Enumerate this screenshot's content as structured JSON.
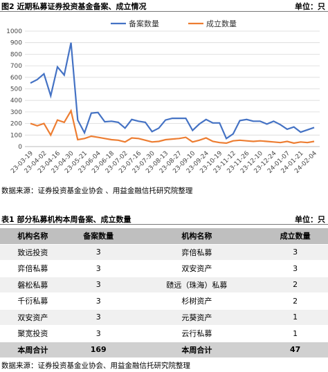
{
  "chart_data": {
    "type": "line",
    "title": "图2 近期私募证券投资基金备案、成立情况",
    "unit": "单位：只",
    "categories": [
      "23-03-19",
      null,
      "23-04-02",
      null,
      "23-04-16",
      null,
      "23-04-30",
      null,
      "23-05-21",
      null,
      "23-06-04",
      null,
      "23-06-18",
      null,
      "23-07-02",
      null,
      "23-07-16",
      null,
      "23-07-30",
      null,
      "23-08-13",
      null,
      "23-08-27",
      null,
      "23-09-10",
      null,
      "23-09-24",
      null,
      "23-10-19",
      null,
      "23-11-12",
      null,
      "23-11-26",
      null,
      "23-12-10",
      null,
      "23-12-24",
      null,
      "24-01-07",
      null,
      "24-01-21",
      null,
      "24-02-04"
    ],
    "series": [
      {
        "name": "备案数量",
        "color": "#4472c4",
        "values": [
          550,
          580,
          630,
          440,
          690,
          620,
          900,
          230,
          120,
          290,
          295,
          215,
          220,
          210,
          160,
          235,
          220,
          210,
          130,
          160,
          230,
          245,
          245,
          245,
          140,
          195,
          235,
          205,
          205,
          70,
          110,
          225,
          235,
          220,
          220,
          195,
          220,
          190,
          150,
          170,
          125,
          145,
          165
        ]
      },
      {
        "name": "成立数量",
        "color": "#ed7d31",
        "values": [
          200,
          180,
          200,
          100,
          230,
          210,
          310,
          60,
          70,
          90,
          80,
          70,
          60,
          55,
          40,
          75,
          70,
          55,
          40,
          45,
          60,
          65,
          70,
          80,
          40,
          55,
          75,
          45,
          35,
          30,
          50,
          55,
          50,
          45,
          50,
          45,
          40,
          35,
          45,
          30,
          40,
          35,
          45
        ]
      }
    ],
    "ylim": [
      0,
      1000
    ],
    "yticks": [
      0,
      100,
      200,
      300,
      400,
      500,
      600,
      700,
      800,
      900,
      1000
    ],
    "grid": true,
    "legend": "top",
    "source": "数据来源：证券投资基金业协会 、用益金融信托研究院整理"
  },
  "table": {
    "title": "表1 部分私募机构本周备案、成立数量",
    "unit": "单位：只",
    "columns": [
      "机构名称",
      "备案数量",
      "机构名称",
      "成立数量"
    ],
    "rows": [
      [
        "致远投资",
        3,
        "弈倍私募",
        3
      ],
      [
        "弈倍私募",
        3,
        "双安资产",
        3
      ],
      [
        "磐松私募",
        3,
        "赜远（珠海）私募",
        2
      ],
      [
        "千衍私募",
        3,
        "杉树资产",
        2
      ],
      [
        "双安资产",
        3,
        "元葵资产",
        1
      ],
      [
        "聚宽投资",
        3,
        "云行私募",
        1
      ]
    ],
    "total": [
      "本周合计",
      169,
      "本周合计",
      47
    ],
    "source": "数据来源：证券投资基金业协会、用益金融信托研究院整理"
  }
}
